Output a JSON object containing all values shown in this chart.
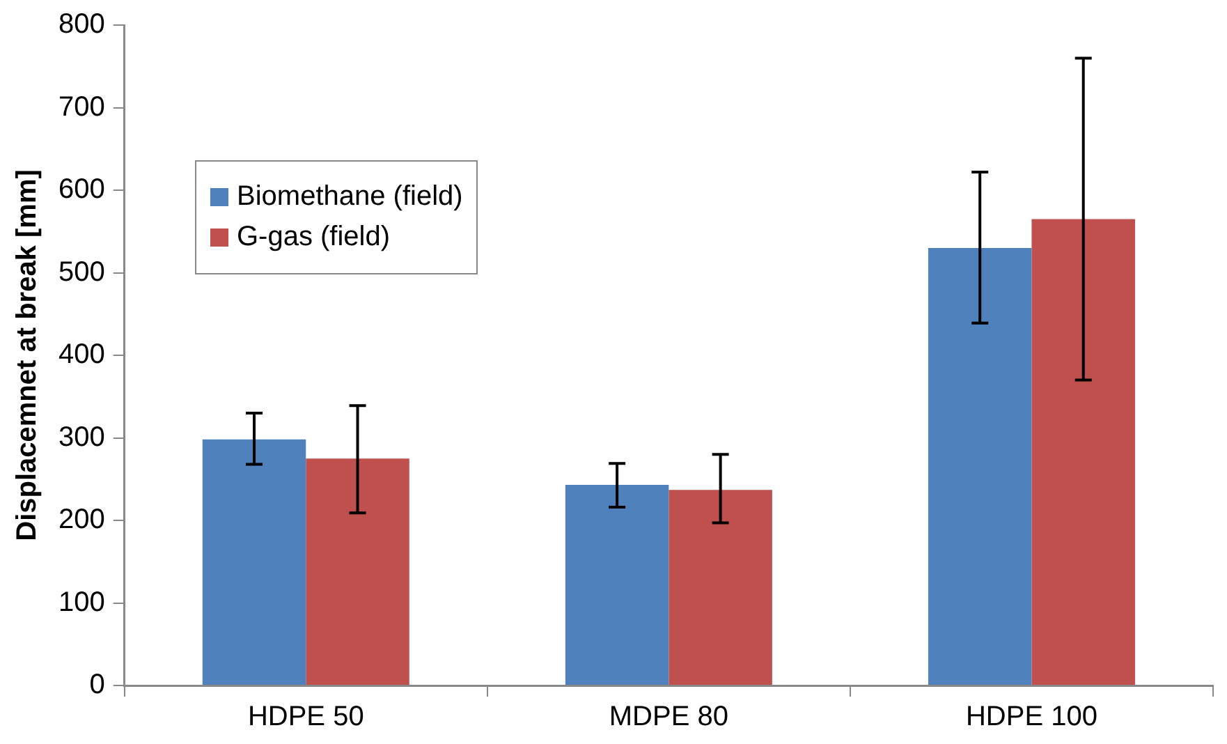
{
  "chart_data": {
    "type": "bar",
    "ylabel": "Displacemnet at break [mm]",
    "categories": [
      "HDPE 50",
      "MDPE 80",
      "HDPE 100"
    ],
    "series": [
      {
        "name": "Biomethane (field)",
        "color": "#4f81bd",
        "values": [
          298,
          243,
          530
        ],
        "errors": [
          [
            268,
            330
          ],
          [
            216,
            269
          ],
          [
            439,
            622
          ]
        ]
      },
      {
        "name": "G-gas (field)",
        "color": "#c0504d",
        "values": [
          275,
          237,
          565
        ],
        "errors": [
          [
            209,
            339
          ],
          [
            197,
            280
          ],
          [
            370,
            760
          ]
        ]
      }
    ],
    "ylim": [
      0,
      800
    ],
    "yticks": [
      0,
      100,
      200,
      300,
      400,
      500,
      600,
      700,
      800
    ],
    "grid": false,
    "legend": "top left"
  }
}
